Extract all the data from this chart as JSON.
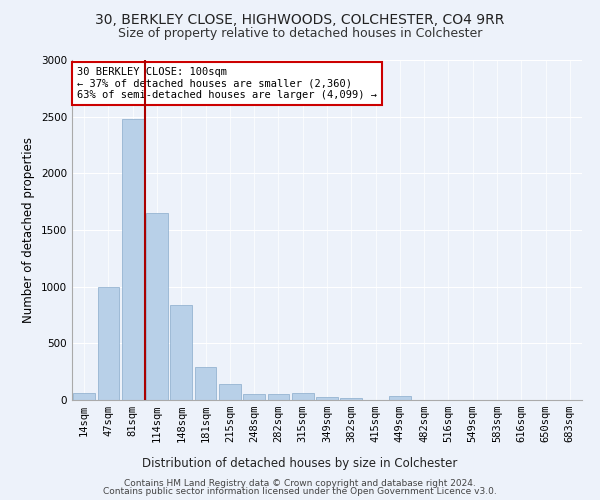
{
  "title1": "30, BERKLEY CLOSE, HIGHWOODS, COLCHESTER, CO4 9RR",
  "title2": "Size of property relative to detached houses in Colchester",
  "xlabel": "Distribution of detached houses by size in Colchester",
  "ylabel": "Number of detached properties",
  "categories": [
    "14sqm",
    "47sqm",
    "81sqm",
    "114sqm",
    "148sqm",
    "181sqm",
    "215sqm",
    "248sqm",
    "282sqm",
    "315sqm",
    "349sqm",
    "382sqm",
    "415sqm",
    "449sqm",
    "482sqm",
    "516sqm",
    "549sqm",
    "583sqm",
    "616sqm",
    "650sqm",
    "683sqm"
  ],
  "values": [
    60,
    1000,
    2480,
    1650,
    840,
    295,
    140,
    55,
    50,
    60,
    30,
    20,
    0,
    35,
    0,
    0,
    0,
    0,
    0,
    0,
    0
  ],
  "bar_color": "#b8d0e8",
  "bar_edge_color": "#8aabcc",
  "vline_pos": 2.5,
  "vline_color": "#aa0000",
  "annotation_text": "30 BERKLEY CLOSE: 100sqm\n← 37% of detached houses are smaller (2,360)\n63% of semi-detached houses are larger (4,099) →",
  "annotation_box_color": "#ffffff",
  "annotation_box_edge_color": "#cc0000",
  "footer1": "Contains HM Land Registry data © Crown copyright and database right 2024.",
  "footer2": "Contains public sector information licensed under the Open Government Licence v3.0.",
  "bg_color": "#edf2fa",
  "ylim": [
    0,
    3000
  ],
  "yticks": [
    0,
    500,
    1000,
    1500,
    2000,
    2500,
    3000
  ],
  "title1_fontsize": 10,
  "title2_fontsize": 9,
  "xlabel_fontsize": 8.5,
  "ylabel_fontsize": 8.5,
  "tick_fontsize": 7.5,
  "footer_fontsize": 6.5
}
